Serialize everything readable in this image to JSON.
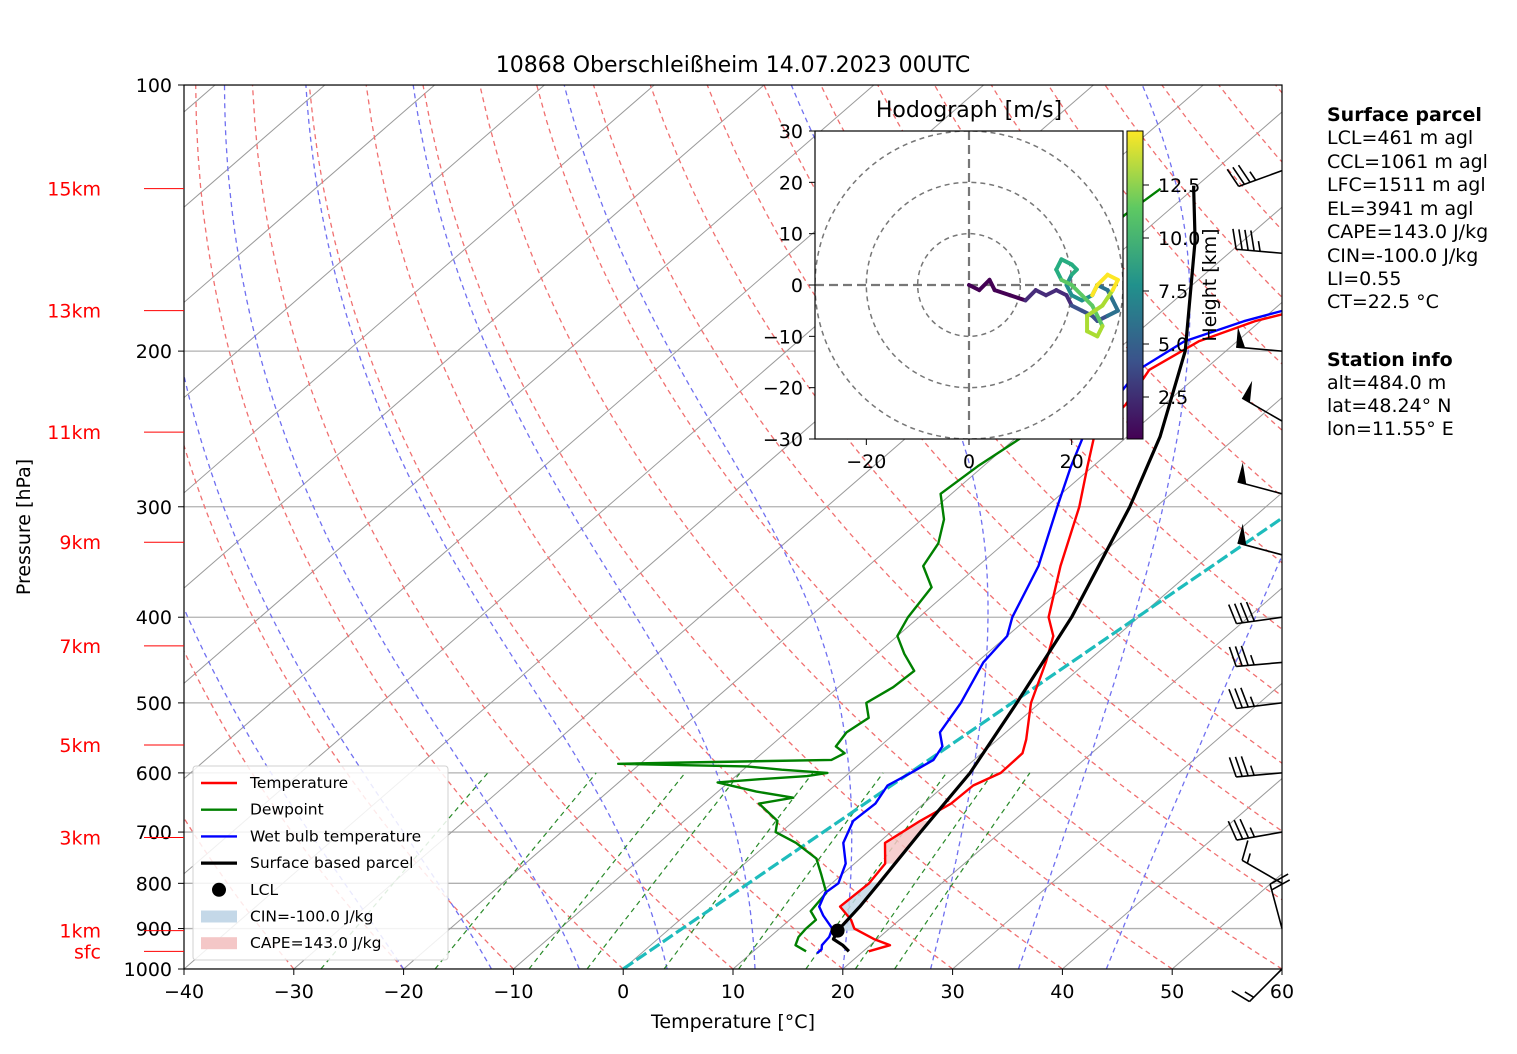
{
  "title": "10868 Oberschleißheim 14.07.2023 00UTC",
  "chart_data": {
    "type": "skewt",
    "x_label": "Temperature [°C]",
    "y_label": "Pressure [hPa]",
    "x_range": [
      -40,
      60
    ],
    "p_range": [
      1000,
      100
    ],
    "x_ticks": [
      "−40",
      "−30",
      "−20",
      "−10",
      "0",
      "10",
      "20",
      "30",
      "40",
      "50",
      "60"
    ],
    "p_ticks": [
      1000,
      900,
      800,
      700,
      600,
      500,
      400,
      300,
      200,
      100
    ],
    "height_labels": [
      {
        "label": "sfc",
        "p": 955
      },
      {
        "label": "1km",
        "p": 905
      },
      {
        "label": "3km",
        "p": 710
      },
      {
        "label": "5km",
        "p": 558
      },
      {
        "label": "7km",
        "p": 431
      },
      {
        "label": "9km",
        "p": 329
      },
      {
        "label": "11km",
        "p": 247
      },
      {
        "label": "13km",
        "p": 180
      },
      {
        "label": "15km",
        "p": 131
      }
    ],
    "temperature": [
      [
        955,
        20.5
      ],
      [
        940,
        21.8
      ],
      [
        925,
        19.7
      ],
      [
        900,
        16.8
      ],
      [
        880,
        15.6
      ],
      [
        850,
        13.2
      ],
      [
        800,
        13.4
      ],
      [
        760,
        12.8
      ],
      [
        720,
        10.6
      ],
      [
        680,
        11.5
      ],
      [
        650,
        12.5
      ],
      [
        620,
        12.6
      ],
      [
        600,
        13.8
      ],
      [
        570,
        13.7
      ],
      [
        550,
        12.6
      ],
      [
        500,
        9.2
      ],
      [
        450,
        6.3
      ],
      [
        420,
        4.2
      ],
      [
        400,
        1.8
      ],
      [
        350,
        -2.5
      ],
      [
        300,
        -7.0
      ],
      [
        270,
        -10.5
      ],
      [
        250,
        -13.0
      ],
      [
        230,
        -13.5
      ],
      [
        210,
        -15.0
      ],
      [
        195,
        -13.5
      ],
      [
        185,
        -10.5
      ],
      [
        175,
        -5.0
      ],
      [
        165,
        -4.0
      ],
      [
        155,
        -3.5
      ],
      [
        145,
        -2.0
      ],
      [
        135,
        -1.5
      ],
      [
        130,
        -0.2
      ]
    ],
    "dewpoint": [
      [
        955,
        14.8
      ],
      [
        940,
        13.2
      ],
      [
        920,
        12.6
      ],
      [
        900,
        12.4
      ],
      [
        880,
        12.4
      ],
      [
        860,
        11.0
      ],
      [
        820,
        10.5
      ],
      [
        780,
        8.0
      ],
      [
        750,
        6.0
      ],
      [
        720,
        2.5
      ],
      [
        700,
        -0.5
      ],
      [
        680,
        -1.5
      ],
      [
        650,
        -5.0
      ],
      [
        640,
        -2.5
      ],
      [
        630,
        -6.5
      ],
      [
        615,
        -11.0
      ],
      [
        610,
        -7.5
      ],
      [
        605,
        -3.5
      ],
      [
        600,
        -2.0
      ],
      [
        595,
        -6.5
      ],
      [
        590,
        -10.0
      ],
      [
        586,
        -22.0
      ],
      [
        584,
        -16.0
      ],
      [
        580,
        -3.0
      ],
      [
        570,
        -2.5
      ],
      [
        560,
        -4.0
      ],
      [
        540,
        -4.5
      ],
      [
        520,
        -4.0
      ],
      [
        500,
        -5.8
      ],
      [
        480,
        -5.0
      ],
      [
        460,
        -4.8
      ],
      [
        440,
        -7.5
      ],
      [
        420,
        -10.0
      ],
      [
        400,
        -11.0
      ],
      [
        370,
        -12.0
      ],
      [
        350,
        -15.0
      ],
      [
        330,
        -16.0
      ],
      [
        310,
        -18.0
      ],
      [
        290,
        -21.0
      ],
      [
        270,
        -20.5
      ],
      [
        250,
        -19.5
      ],
      [
        235,
        -22.0
      ],
      [
        225,
        -25.0
      ],
      [
        210,
        -24.5
      ],
      [
        205,
        -28.0
      ],
      [
        195,
        -28.5
      ],
      [
        188,
        -31.0
      ],
      [
        180,
        -28.0
      ],
      [
        170,
        -32.0
      ],
      [
        160,
        -32.5
      ],
      [
        150,
        -33.5
      ],
      [
        140,
        -33.5
      ],
      [
        131,
        -33.0
      ]
    ],
    "wetbulb": [
      [
        960,
        16.0
      ],
      [
        950,
        16.0
      ],
      [
        940,
        15.6
      ],
      [
        920,
        15.4
      ],
      [
        900,
        14.8
      ],
      [
        870,
        12.6
      ],
      [
        850,
        11.3
      ],
      [
        820,
        10.4
      ],
      [
        800,
        10.6
      ],
      [
        760,
        9.2
      ],
      [
        720,
        6.8
      ],
      [
        680,
        5.4
      ],
      [
        650,
        5.6
      ],
      [
        620,
        4.8
      ],
      [
        600,
        5.6
      ],
      [
        580,
        6.3
      ],
      [
        560,
        5.7
      ],
      [
        540,
        4.0
      ],
      [
        500,
        2.8
      ],
      [
        450,
        0.6
      ],
      [
        420,
        0.0
      ],
      [
        400,
        -1.5
      ],
      [
        350,
        -4.5
      ],
      [
        300,
        -9.0
      ],
      [
        270,
        -12.0
      ],
      [
        250,
        -14.0
      ],
      [
        230,
        -14.8
      ],
      [
        210,
        -16.0
      ],
      [
        195,
        -14.8
      ],
      [
        185,
        -11.5
      ],
      [
        175,
        -6.5
      ],
      [
        165,
        -4.8
      ],
      [
        155,
        -4.3
      ],
      [
        145,
        -2.7
      ],
      [
        135,
        -2.2
      ],
      [
        130,
        -1.0
      ]
    ],
    "parcel": [
      [
        955,
        18.7
      ],
      [
        940,
        17.5
      ],
      [
        925,
        16.0
      ],
      [
        905,
        15.5
      ],
      [
        850,
        15.0
      ],
      [
        800,
        14.3
      ],
      [
        700,
        12.7
      ],
      [
        600,
        11.0
      ],
      [
        500,
        7.9
      ],
      [
        400,
        3.9
      ],
      [
        300,
        -2.4
      ],
      [
        250,
        -7.0
      ],
      [
        200,
        -13.7
      ],
      [
        150,
        -24.4
      ],
      [
        130,
        -30.3
      ]
    ],
    "lcl": {
      "p": 905,
      "t": 15.5
    },
    "ccl_line": [
      [
        1000,
        0.0
      ],
      [
        130,
        22.0
      ]
    ],
    "legend": [
      {
        "label": "Temperature",
        "color": "#ff0000"
      },
      {
        "label": "Dewpoint",
        "color": "#008000"
      },
      {
        "label": "Wet bulb temperature",
        "color": "#0000ff"
      },
      {
        "label": "Surface based parcel",
        "color": "#000000"
      },
      {
        "label": "LCL",
        "color": "#000000"
      },
      {
        "label": "CIN=-100.0 J/kg",
        "color": "#c4d8e8"
      },
      {
        "label": "CAPE=143.0 J/kg",
        "color": "#f4c7c7"
      }
    ],
    "wind_barbs": [
      {
        "p": 1000,
        "speed_ms": 9,
        "dir_deg": 225
      },
      {
        "p": 900,
        "speed_ms": 10,
        "dir_deg": 345
      },
      {
        "p": 800,
        "speed_ms": 8,
        "dir_deg": 300
      },
      {
        "p": 700,
        "speed_ms": 17,
        "dir_deg": 260
      },
      {
        "p": 600,
        "speed_ms": 19,
        "dir_deg": 265
      },
      {
        "p": 500,
        "speed_ms": 19,
        "dir_deg": 263
      },
      {
        "p": 450,
        "speed_ms": 19,
        "dir_deg": 265
      },
      {
        "p": 400,
        "speed_ms": 21,
        "dir_deg": 262
      },
      {
        "p": 340,
        "speed_ms": 26,
        "dir_deg": 285
      },
      {
        "p": 290,
        "speed_ms": 26,
        "dir_deg": 285
      },
      {
        "p": 240,
        "speed_ms": 26,
        "dir_deg": 300
      },
      {
        "p": 200,
        "speed_ms": 25,
        "dir_deg": 275
      },
      {
        "p": 155,
        "speed_ms": 22,
        "dir_deg": 275
      },
      {
        "p": 125,
        "speed_ms": 18,
        "dir_deg": 250
      }
    ]
  },
  "hodograph": {
    "title": "Hodograph [m/s]",
    "x_ticks": [
      "−20",
      "0",
      "20"
    ],
    "y_ticks": [
      "30",
      "20",
      "10",
      "0",
      "−10",
      "−20",
      "−30"
    ],
    "range": [
      -30,
      30
    ],
    "rings": [
      10,
      20,
      30
    ],
    "colorbar_label": "Height [km]",
    "colorbar_ticks": [
      "2.5",
      "5.0",
      "7.5",
      "10.0",
      "12.5"
    ],
    "trace": [
      [
        0,
        0
      ],
      [
        2,
        -1
      ],
      [
        4,
        1
      ],
      [
        5,
        -1
      ],
      [
        8,
        -2
      ],
      [
        11,
        -3
      ],
      [
        13,
        -1
      ],
      [
        15,
        -2
      ],
      [
        17,
        -1
      ],
      [
        19,
        -2
      ],
      [
        20,
        -4
      ],
      [
        22,
        -5
      ],
      [
        24,
        -6
      ],
      [
        25,
        -7
      ],
      [
        27,
        -6
      ],
      [
        29,
        -5
      ],
      [
        28,
        -3
      ],
      [
        27,
        -1
      ],
      [
        25,
        0
      ],
      [
        24,
        -2
      ],
      [
        22,
        -3
      ],
      [
        20,
        -2
      ],
      [
        19,
        0
      ],
      [
        20,
        2
      ],
      [
        21,
        3
      ],
      [
        20,
        4
      ],
      [
        18,
        5
      ],
      [
        17,
        3
      ],
      [
        18,
        1
      ],
      [
        20,
        0
      ],
      [
        22,
        -2
      ],
      [
        24,
        -4
      ],
      [
        26,
        -8
      ],
      [
        25,
        -10
      ],
      [
        23,
        -9
      ],
      [
        23,
        -6
      ],
      [
        26,
        -4
      ],
      [
        28,
        -1
      ],
      [
        29,
        1
      ],
      [
        27,
        2
      ],
      [
        25,
        0
      ],
      [
        24,
        -2
      ]
    ]
  },
  "surface_parcel": {
    "heading": "Surface parcel",
    "lines": [
      "LCL=461 m agl",
      "CCL=1061 m agl",
      "LFC=1511 m agl",
      "EL=3941 m agl",
      "CAPE=143.0 J/kg",
      "CIN=-100.0 J/kg",
      "LI=0.55",
      "CT=22.5 °C"
    ]
  },
  "station_info": {
    "heading": "Station info",
    "lines": [
      "alt=484.0 m",
      "lat=48.24° N",
      "lon=11.55° E"
    ]
  }
}
